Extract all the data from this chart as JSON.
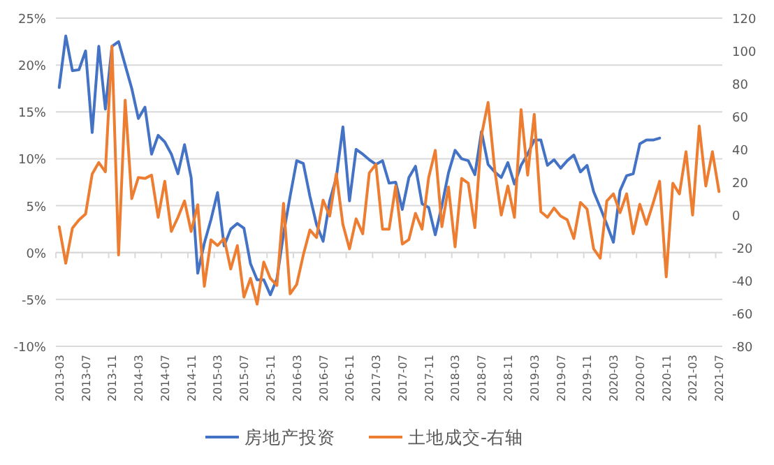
{
  "chart_data": {
    "type": "line",
    "categories": [
      "2013-03",
      null,
      null,
      null,
      "2013-07",
      null,
      null,
      null,
      "2013-11",
      null,
      null,
      null,
      "2014-03",
      null,
      null,
      null,
      "2014-07",
      null,
      null,
      null,
      "2014-11",
      null,
      null,
      null,
      "2015-03",
      null,
      null,
      null,
      "2015-07",
      null,
      null,
      null,
      "2015-11",
      null,
      null,
      null,
      "2016-03",
      null,
      null,
      null,
      "2016-07",
      null,
      null,
      null,
      "2016-11",
      null,
      null,
      null,
      "2017-03",
      null,
      null,
      null,
      "2017-07",
      null,
      null,
      null,
      "2017-11",
      null,
      null,
      null,
      "2018-03",
      null,
      null,
      null,
      "2018-07",
      null,
      null,
      null,
      "2018-11",
      null,
      null,
      null,
      "2019-03",
      null,
      null,
      null,
      "2019-07",
      null,
      null,
      null,
      "2019-11",
      null,
      null,
      null,
      "2020-03",
      null,
      null,
      null,
      "2020-07",
      null,
      null,
      null,
      "2020-11",
      null,
      null,
      null,
      "2021-03",
      null,
      null,
      null,
      "2021-07"
    ],
    "series": [
      {
        "name": "房地产投资",
        "color": "#4472c4",
        "values": [
          17.6,
          23.1,
          19.4,
          19.5,
          21.5,
          12.8,
          22,
          15.3,
          22,
          22.5,
          20,
          17.5,
          14.3,
          15.5,
          10.5,
          12.5,
          11.8,
          10.5,
          8.4,
          11.5,
          8,
          -2.2,
          1,
          3.5,
          6.4,
          0.7,
          2.5,
          3.1,
          2.6,
          -1.2,
          -2.9,
          -2.9,
          -4.5,
          -2.8,
          2,
          6,
          9.8,
          9.5,
          6,
          3,
          1.2,
          5.5,
          8,
          13.4,
          5.5,
          11,
          10.5,
          9.9,
          9.4,
          9.8,
          7.4,
          7.5,
          4.6,
          8,
          9.2,
          5.2,
          4.8,
          1.9,
          5,
          8.5,
          10.9,
          10,
          9.8,
          8.3,
          12.9,
          9.4,
          8.6,
          8,
          9.6,
          7.3,
          9.3,
          10.5,
          12,
          12,
          9.3,
          9.9,
          9,
          9.8,
          10.4,
          8.6,
          9.3,
          6.5,
          4.8,
          3,
          1.1,
          6.6,
          8.2,
          8.4,
          11.6,
          12,
          12,
          12.2,
          null,
          null,
          null,
          null,
          null,
          null,
          null,
          null,
          null
        ]
      },
      {
        "name": "土地成交-右轴",
        "color": "#ed7d31",
        "axis": "y2",
        "values": [
          -7.1,
          -29.4,
          -8,
          -3,
          0.6,
          25,
          32,
          26.3,
          102.9,
          -24.3,
          70,
          10,
          22.9,
          22.3,
          24.3,
          -1.4,
          20.6,
          -10,
          -1.4,
          8.6,
          -10,
          6.3,
          -43.4,
          -15.1,
          -18.6,
          -14.3,
          -32.9,
          -18.6,
          -50,
          -38.6,
          -54.3,
          -28.6,
          -38.6,
          -42.9,
          7.1,
          -48,
          -42.3,
          -24.3,
          -9.1,
          -13.7,
          9.1,
          -0.6,
          25.1,
          -5.7,
          -20.6,
          -2.3,
          -11.4,
          25.7,
          30.9,
          -8.6,
          -8.6,
          17.7,
          -17.7,
          -14.9,
          1.1,
          -8.6,
          22.9,
          39.4,
          -7.1,
          17.1,
          -19.4,
          22.3,
          19.4,
          -7.7,
          48.6,
          68.6,
          28,
          0,
          17.7,
          -1.4,
          64.3,
          24.3,
          61.4,
          2,
          -1.4,
          4.3,
          -0.6,
          -2.9,
          -14.3,
          7.7,
          3.7,
          -20.6,
          -26.3,
          8.6,
          12.9,
          1.4,
          12.9,
          -11.4,
          6.6,
          -5.7,
          7.1,
          20.6,
          -37.7,
          19.4,
          12.9,
          38.6,
          0,
          54.3,
          17.7,
          38.6,
          14.3
        ]
      }
    ],
    "ylim": [
      -10,
      25
    ],
    "yticks": [
      {
        "value": -10,
        "label": "-10%"
      },
      {
        "value": -5,
        "label": "-5%"
      },
      {
        "value": 0,
        "label": "0%"
      },
      {
        "value": 5,
        "label": "5%"
      },
      {
        "value": 10,
        "label": "10%"
      },
      {
        "value": 15,
        "label": "15%"
      },
      {
        "value": 20,
        "label": "20%"
      },
      {
        "value": 25,
        "label": "25%"
      }
    ],
    "y2lim": [
      -80,
      120
    ],
    "y2ticks": [
      -80,
      -60,
      -40,
      -20,
      0,
      20,
      40,
      60,
      80,
      100,
      120
    ],
    "grid": "y",
    "legend": "bottom"
  }
}
